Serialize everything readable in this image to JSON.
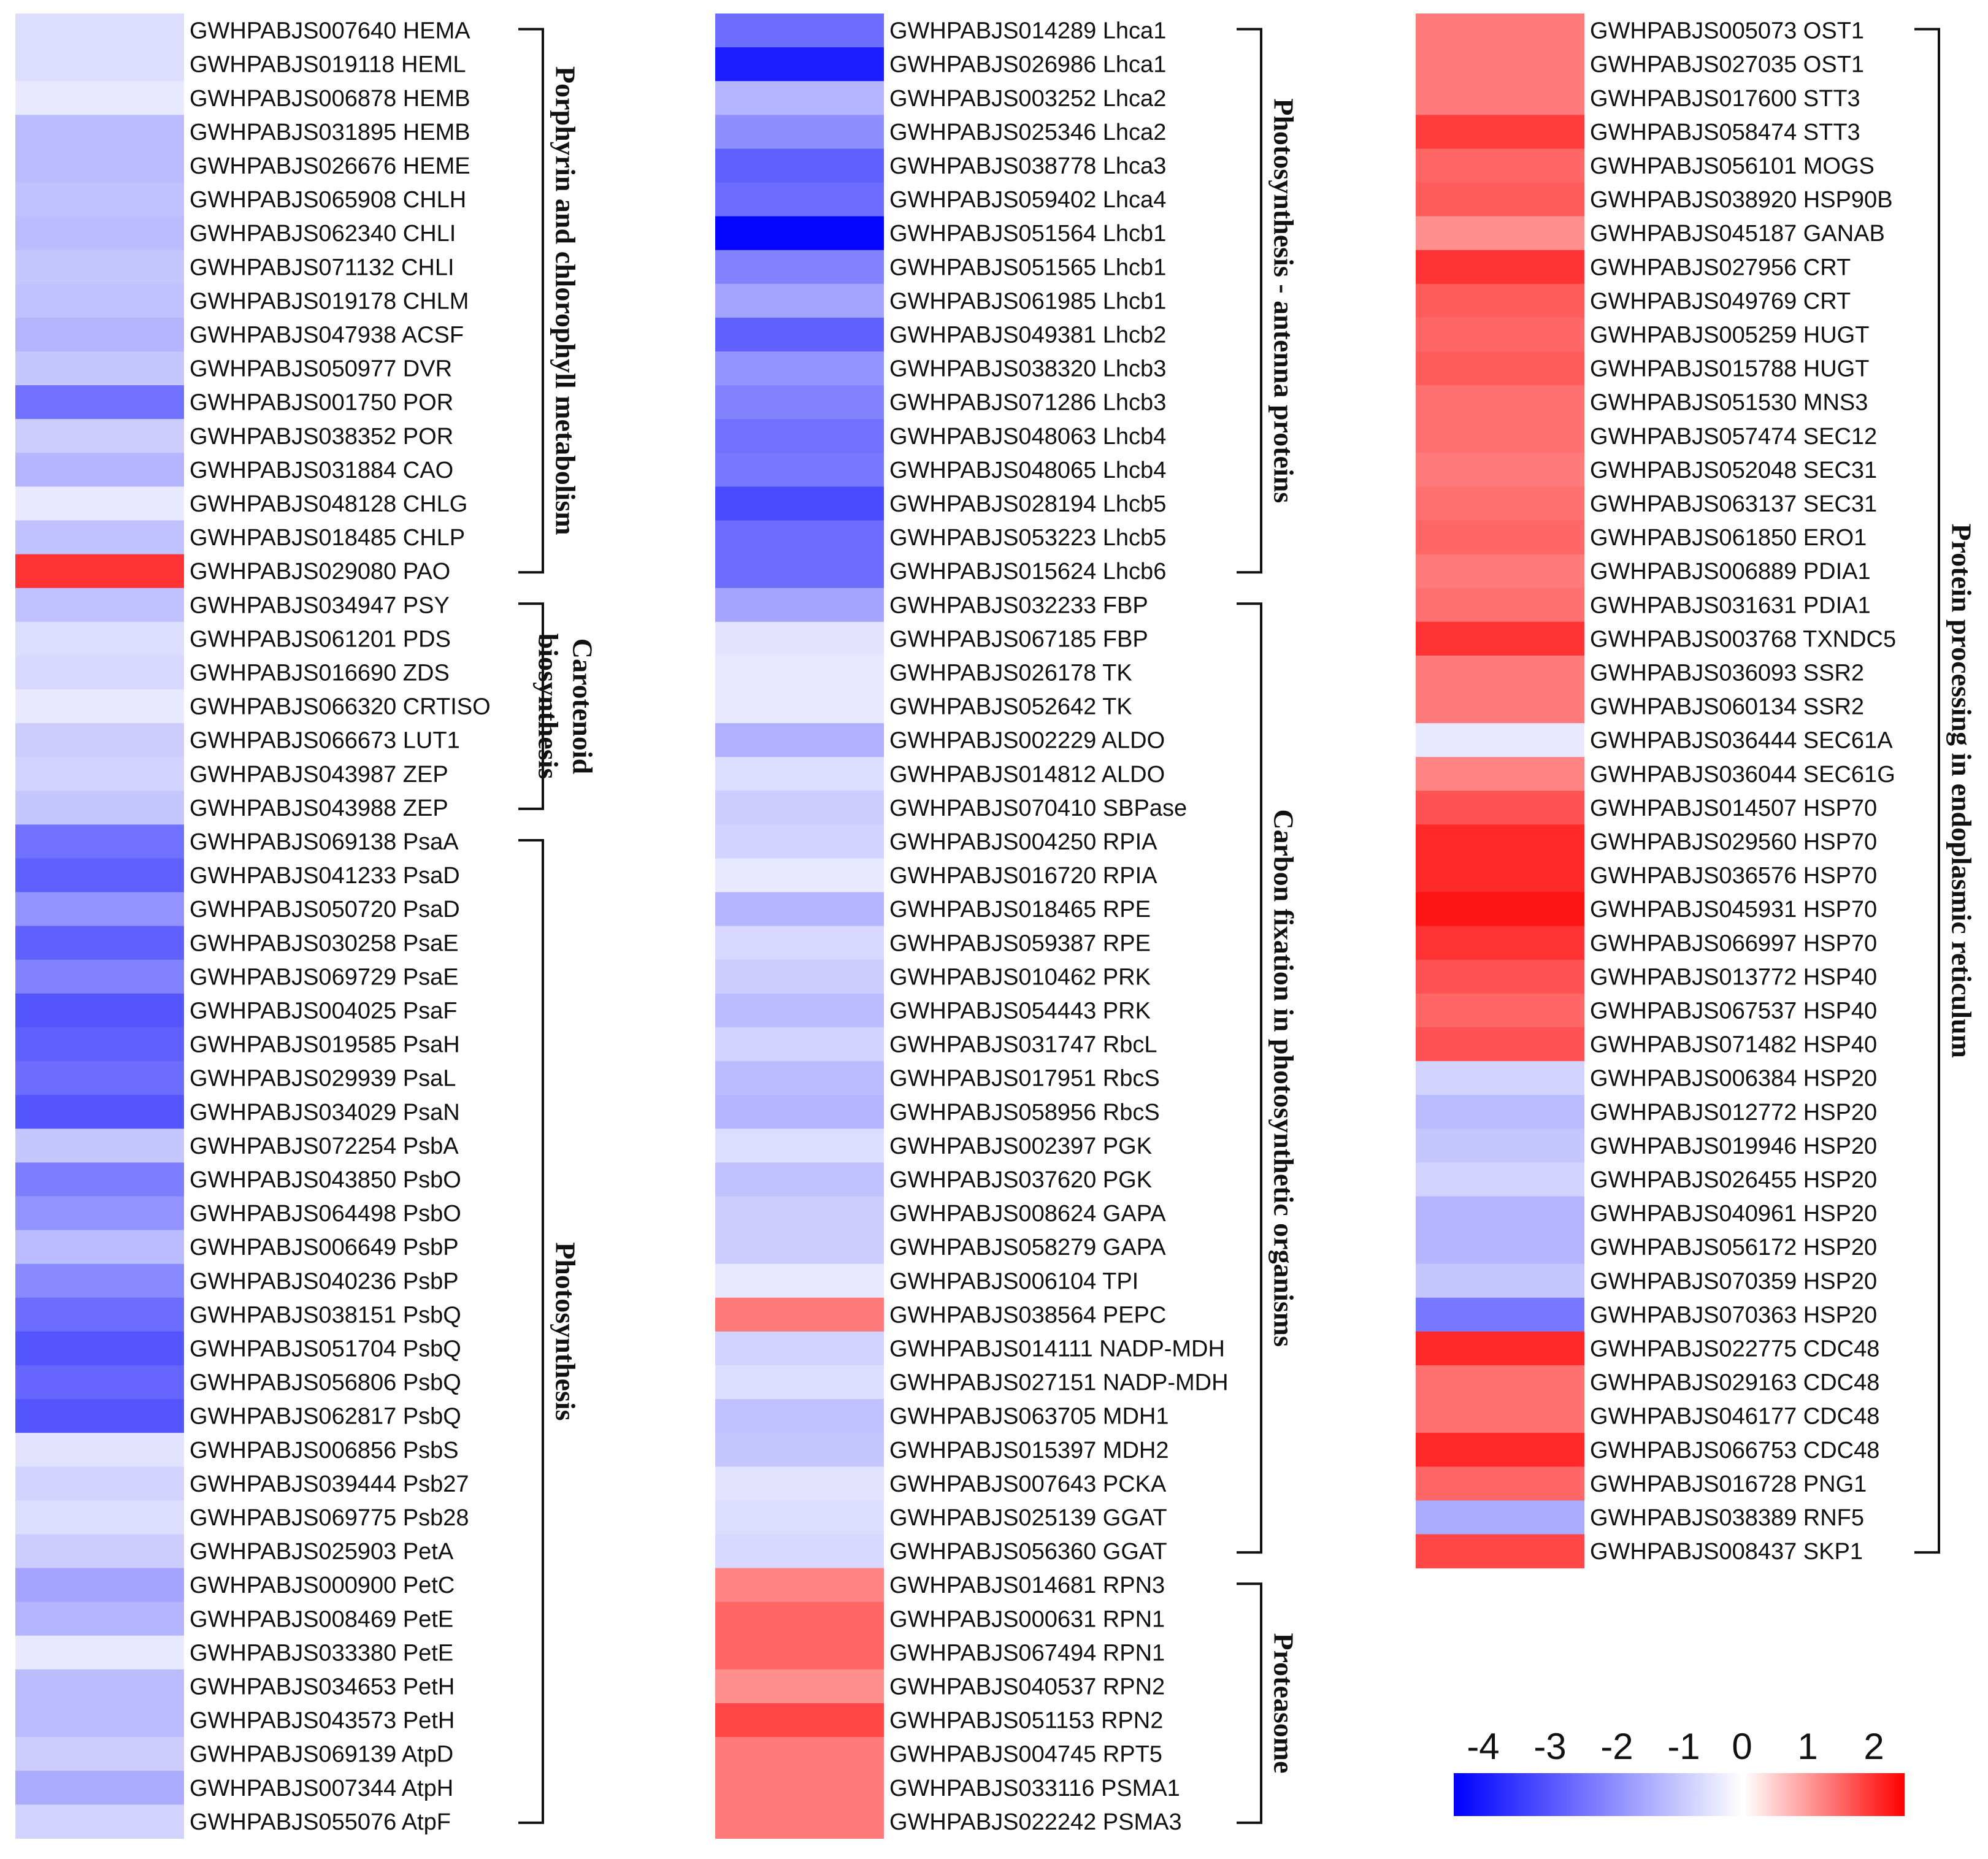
{
  "chart_data": {
    "type": "heatmap",
    "title": "",
    "color_scale": {
      "ticks": [
        -4,
        -3,
        -2,
        -1,
        0,
        1,
        2
      ],
      "min": -4.5,
      "max": 2.5,
      "low_color": "#0000ff",
      "mid_color": "#ffffff",
      "high_color": "#ff0000"
    },
    "columns": [
      {
        "genes": [
          {
            "label": "GWHPABJS007640 HEMA",
            "value": -0.6
          },
          {
            "label": "GWHPABJS019118 HEML",
            "value": -0.6
          },
          {
            "label": "GWHPABJS006878 HEMB",
            "value": -0.4
          },
          {
            "label": "GWHPABJS031895 HEMB",
            "value": -1.2
          },
          {
            "label": "GWHPABJS026676 HEME",
            "value": -1.2
          },
          {
            "label": "GWHPABJS065908 CHLH",
            "value": -1.1
          },
          {
            "label": "GWHPABJS062340 CHLI",
            "value": -1.2
          },
          {
            "label": "GWHPABJS071132 CHLI",
            "value": -1.0
          },
          {
            "label": "GWHPABJS019178 CHLM",
            "value": -1.1
          },
          {
            "label": "GWHPABJS047938 ACSF",
            "value": -1.3
          },
          {
            "label": "GWHPABJS050977 DVR",
            "value": -1.0
          },
          {
            "label": "GWHPABJS001750 POR",
            "value": -2.5
          },
          {
            "label": "GWHPABJS038352 POR",
            "value": -0.9
          },
          {
            "label": "GWHPABJS031884 CAO",
            "value": -1.3
          },
          {
            "label": "GWHPABJS048128 CHLG",
            "value": -0.4
          },
          {
            "label": "GWHPABJS018485 CHLP",
            "value": -1.1
          },
          {
            "label": "GWHPABJS029080 PAO",
            "value": 2.0
          },
          {
            "label": "GWHPABJS034947 PSY",
            "value": -1.1
          },
          {
            "label": "GWHPABJS061201 PDS",
            "value": -0.6
          },
          {
            "label": "GWHPABJS016690 ZDS",
            "value": -0.7
          },
          {
            "label": "GWHPABJS066320 CRTISO",
            "value": -0.4
          },
          {
            "label": "GWHPABJS066673 LUT1",
            "value": -0.9
          },
          {
            "label": "GWHPABJS043987 ZEP",
            "value": -0.8
          },
          {
            "label": "GWHPABJS043988 ZEP",
            "value": -1.0
          },
          {
            "label": "GWHPABJS069138 PsaA",
            "value": -2.5
          },
          {
            "label": "GWHPABJS041233 PsaD",
            "value": -2.8
          },
          {
            "label": "GWHPABJS050720 PsaD",
            "value": -1.9
          },
          {
            "label": "GWHPABJS030258 PsaE",
            "value": -2.8
          },
          {
            "label": "GWHPABJS069729 PsaE",
            "value": -2.2
          },
          {
            "label": "GWHPABJS004025 PsaF",
            "value": -3.0
          },
          {
            "label": "GWHPABJS019585 PsaH",
            "value": -2.8
          },
          {
            "label": "GWHPABJS029939 PsaL",
            "value": -2.6
          },
          {
            "label": "GWHPABJS034029 PsaN",
            "value": -3.0
          },
          {
            "label": "GWHPABJS072254 PsbA",
            "value": -1.0
          },
          {
            "label": "GWHPABJS043850 PsbO",
            "value": -2.3
          },
          {
            "label": "GWHPABJS064498 PsbO",
            "value": -1.9
          },
          {
            "label": "GWHPABJS006649 PsbP",
            "value": -1.2
          },
          {
            "label": "GWHPABJS040236 PsbP",
            "value": -2.1
          },
          {
            "label": "GWHPABJS038151 PsbQ",
            "value": -2.6
          },
          {
            "label": "GWHPABJS051704 PsbQ",
            "value": -3.0
          },
          {
            "label": "GWHPABJS056806 PsbQ",
            "value": -2.7
          },
          {
            "label": "GWHPABJS062817 PsbQ",
            "value": -3.0
          },
          {
            "label": "GWHPABJS006856 PsbS",
            "value": -0.5
          },
          {
            "label": "GWHPABJS039444 Psb27",
            "value": -0.8
          },
          {
            "label": "GWHPABJS069775 Psb28",
            "value": -0.6
          },
          {
            "label": "GWHPABJS025903 PetA",
            "value": -0.9
          },
          {
            "label": "GWHPABJS000900 PetC",
            "value": -1.6
          },
          {
            "label": "GWHPABJS008469 PetE",
            "value": -1.3
          },
          {
            "label": "GWHPABJS033380 PetE",
            "value": -0.4
          },
          {
            "label": "GWHPABJS034653 PetH",
            "value": -1.2
          },
          {
            "label": "GWHPABJS043573 PetH",
            "value": -1.2
          },
          {
            "label": "GWHPABJS069139 AtpD",
            "value": -0.9
          },
          {
            "label": "GWHPABJS007344 AtpH",
            "value": -1.5
          },
          {
            "label": "GWHPABJS055076 AtpF",
            "value": -0.8
          }
        ],
        "groups": [
          {
            "name_lines": [
              "Porphyrin and chlorophyll metabolism"
            ],
            "start": 0,
            "end": 16
          },
          {
            "name_lines": [
              "Carotenoid",
              "biosynthesis"
            ],
            "start": 17,
            "end": 23
          },
          {
            "name_lines": [
              "Photosynthesis"
            ],
            "start": 24,
            "end": 53
          }
        ]
      },
      {
        "genes": [
          {
            "label": "GWHPABJS014289 Lhca1",
            "value": -2.6
          },
          {
            "label": "GWHPABJS026986 Lhca1",
            "value": -4.0
          },
          {
            "label": "GWHPABJS003252 Lhca2",
            "value": -1.3
          },
          {
            "label": "GWHPABJS025346 Lhca2",
            "value": -2.0
          },
          {
            "label": "GWHPABJS038778 Lhca3",
            "value": -2.8
          },
          {
            "label": "GWHPABJS059402 Lhca4",
            "value": -2.6
          },
          {
            "label": "GWHPABJS051564 Lhcb1",
            "value": -4.4
          },
          {
            "label": "GWHPABJS051565 Lhcb1",
            "value": -2.2
          },
          {
            "label": "GWHPABJS061985 Lhcb1",
            "value": -1.6
          },
          {
            "label": "GWHPABJS049381 Lhcb2",
            "value": -2.8
          },
          {
            "label": "GWHPABJS038320 Lhcb3",
            "value": -1.9
          },
          {
            "label": "GWHPABJS071286 Lhcb3",
            "value": -2.2
          },
          {
            "label": "GWHPABJS048063 Lhcb4",
            "value": -2.5
          },
          {
            "label": "GWHPABJS048065 Lhcb4",
            "value": -2.4
          },
          {
            "label": "GWHPABJS028194 Lhcb5",
            "value": -3.2
          },
          {
            "label": "GWHPABJS053223 Lhcb5",
            "value": -2.6
          },
          {
            "label": "GWHPABJS015624 Lhcb6",
            "value": -2.6
          },
          {
            "label": "GWHPABJS032233 FBP",
            "value": -1.6
          },
          {
            "label": "GWHPABJS067185 FBP",
            "value": -0.5
          },
          {
            "label": "GWHPABJS026178 TK",
            "value": -0.4
          },
          {
            "label": "GWHPABJS052642 TK",
            "value": -0.4
          },
          {
            "label": "GWHPABJS002229 ALDO",
            "value": -1.4
          },
          {
            "label": "GWHPABJS014812 ALDO",
            "value": -0.6
          },
          {
            "label": "GWHPABJS070410 SBPase",
            "value": -0.9
          },
          {
            "label": "GWHPABJS004250 RPIA",
            "value": -0.8
          },
          {
            "label": "GWHPABJS016720 RPIA",
            "value": -0.4
          },
          {
            "label": "GWHPABJS018465 RPE",
            "value": -1.3
          },
          {
            "label": "GWHPABJS059387 RPE",
            "value": -0.7
          },
          {
            "label": "GWHPABJS010462 PRK",
            "value": -0.9
          },
          {
            "label": "GWHPABJS054443 PRK",
            "value": -1.2
          },
          {
            "label": "GWHPABJS031747 RbcL",
            "value": -0.8
          },
          {
            "label": "GWHPABJS017951 RbcS",
            "value": -1.2
          },
          {
            "label": "GWHPABJS058956 RbcS",
            "value": -1.3
          },
          {
            "label": "GWHPABJS002397 PGK",
            "value": -0.6
          },
          {
            "label": "GWHPABJS037620 PGK",
            "value": -1.1
          },
          {
            "label": "GWHPABJS008624 GAPA",
            "value": -0.9
          },
          {
            "label": "GWHPABJS058279 GAPA",
            "value": -0.9
          },
          {
            "label": "GWHPABJS006104 TPI",
            "value": -0.4
          },
          {
            "label": "GWHPABJS038564 PEPC",
            "value": 1.3
          },
          {
            "label": "GWHPABJS014111 NADP-MDH",
            "value": -0.8
          },
          {
            "label": "GWHPABJS027151 NADP-MDH",
            "value": -0.6
          },
          {
            "label": "GWHPABJS063705 MDH1",
            "value": -1.1
          },
          {
            "label": "GWHPABJS015397 MDH2",
            "value": -1.0
          },
          {
            "label": "GWHPABJS007643 PCKA",
            "value": -0.5
          },
          {
            "label": "GWHPABJS025139 GGAT",
            "value": -0.6
          },
          {
            "label": "GWHPABJS056360 GGAT",
            "value": -0.7
          },
          {
            "label": "GWHPABJS014681 RPN3",
            "value": 1.2
          },
          {
            "label": "GWHPABJS000631 RPN1",
            "value": 1.5
          },
          {
            "label": "GWHPABJS067494 RPN1",
            "value": 1.5
          },
          {
            "label": "GWHPABJS040537 RPN2",
            "value": 1.1
          },
          {
            "label": "GWHPABJS051153 RPN2",
            "value": 1.8
          },
          {
            "label": "GWHPABJS004745 RPT5",
            "value": 1.3
          },
          {
            "label": "GWHPABJS033116 PSMA1",
            "value": 1.3
          },
          {
            "label": "GWHPABJS022242 PSMA3",
            "value": 1.3
          }
        ],
        "groups": [
          {
            "name_lines": [
              "Photosynthesis - antenna proteins"
            ],
            "start": 0,
            "end": 16
          },
          {
            "name_lines": [
              "Carbon fixation in photosynthetic organisms"
            ],
            "start": 17,
            "end": 45
          },
          {
            "name_lines": [
              "Proteasome"
            ],
            "start": 46,
            "end": 53
          }
        ]
      },
      {
        "genes": [
          {
            "label": "GWHPABJS005073 OST1",
            "value": 1.3
          },
          {
            "label": "GWHPABJS027035 OST1",
            "value": 1.3
          },
          {
            "label": "GWHPABJS017600 STT3",
            "value": 1.3
          },
          {
            "label": "GWHPABJS058474 STT3",
            "value": 1.9
          },
          {
            "label": "GWHPABJS056101 MOGS",
            "value": 1.5
          },
          {
            "label": "GWHPABJS038920 HSP90B",
            "value": 1.6
          },
          {
            "label": "GWHPABJS045187 GANAB",
            "value": 1.1
          },
          {
            "label": "GWHPABJS027956 CRT",
            "value": 2.0
          },
          {
            "label": "GWHPABJS049769 CRT",
            "value": 1.6
          },
          {
            "label": "GWHPABJS005259 HUGT",
            "value": 1.5
          },
          {
            "label": "GWHPABJS015788 HUGT",
            "value": 1.6
          },
          {
            "label": "GWHPABJS051530 MNS3",
            "value": 1.4
          },
          {
            "label": "GWHPABJS057474 SEC12",
            "value": 1.4
          },
          {
            "label": "GWHPABJS052048 SEC31",
            "value": 1.3
          },
          {
            "label": "GWHPABJS063137 SEC31",
            "value": 1.4
          },
          {
            "label": "GWHPABJS061850 ERO1",
            "value": 1.5
          },
          {
            "label": "GWHPABJS006889 PDIA1",
            "value": 1.3
          },
          {
            "label": "GWHPABJS031631 PDIA1",
            "value": 1.4
          },
          {
            "label": "GWHPABJS003768 TXNDC5",
            "value": 2.0
          },
          {
            "label": "GWHPABJS036093 SSR2",
            "value": 1.3
          },
          {
            "label": "GWHPABJS060134 SSR2",
            "value": 1.3
          },
          {
            "label": "GWHPABJS036444 SEC61A",
            "value": -0.4
          },
          {
            "label": "GWHPABJS036044 SEC61G",
            "value": 1.2
          },
          {
            "label": "GWHPABJS014507 HSP70",
            "value": 1.7
          },
          {
            "label": "GWHPABJS029560 HSP70",
            "value": 2.1
          },
          {
            "label": "GWHPABJS036576 HSP70",
            "value": 2.1
          },
          {
            "label": "GWHPABJS045931 HSP70",
            "value": 2.3
          },
          {
            "label": "GWHPABJS066997 HSP70",
            "value": 2.0
          },
          {
            "label": "GWHPABJS013772 HSP40",
            "value": 1.7
          },
          {
            "label": "GWHPABJS067537 HSP40",
            "value": 1.5
          },
          {
            "label": "GWHPABJS071482 HSP40",
            "value": 1.7
          },
          {
            "label": "GWHPABJS006384 HSP20",
            "value": -0.8
          },
          {
            "label": "GWHPABJS012772 HSP20",
            "value": -1.2
          },
          {
            "label": "GWHPABJS019946 HSP20",
            "value": -1.0
          },
          {
            "label": "GWHPABJS026455 HSP20",
            "value": -0.8
          },
          {
            "label": "GWHPABJS040961 HSP20",
            "value": -1.3
          },
          {
            "label": "GWHPABJS056172 HSP20",
            "value": -1.3
          },
          {
            "label": "GWHPABJS070359 HSP20",
            "value": -1.0
          },
          {
            "label": "GWHPABJS070363 HSP20",
            "value": -2.4
          },
          {
            "label": "GWHPABJS022775 CDC48",
            "value": 2.1
          },
          {
            "label": "GWHPABJS029163 CDC48",
            "value": 1.4
          },
          {
            "label": "GWHPABJS046177 CDC48",
            "value": 1.4
          },
          {
            "label": "GWHPABJS066753 CDC48",
            "value": 2.1
          },
          {
            "label": "GWHPABJS016728 PNG1",
            "value": 1.5
          },
          {
            "label": "GWHPABJS038389 RNF5",
            "value": -1.5
          },
          {
            "label": "GWHPABJS008437 SKP1",
            "value": 1.8
          }
        ],
        "groups": [
          {
            "name_lines": [
              "Protein processing in endoplasmic reticulum"
            ],
            "start": 0,
            "end": 45
          }
        ]
      }
    ]
  }
}
